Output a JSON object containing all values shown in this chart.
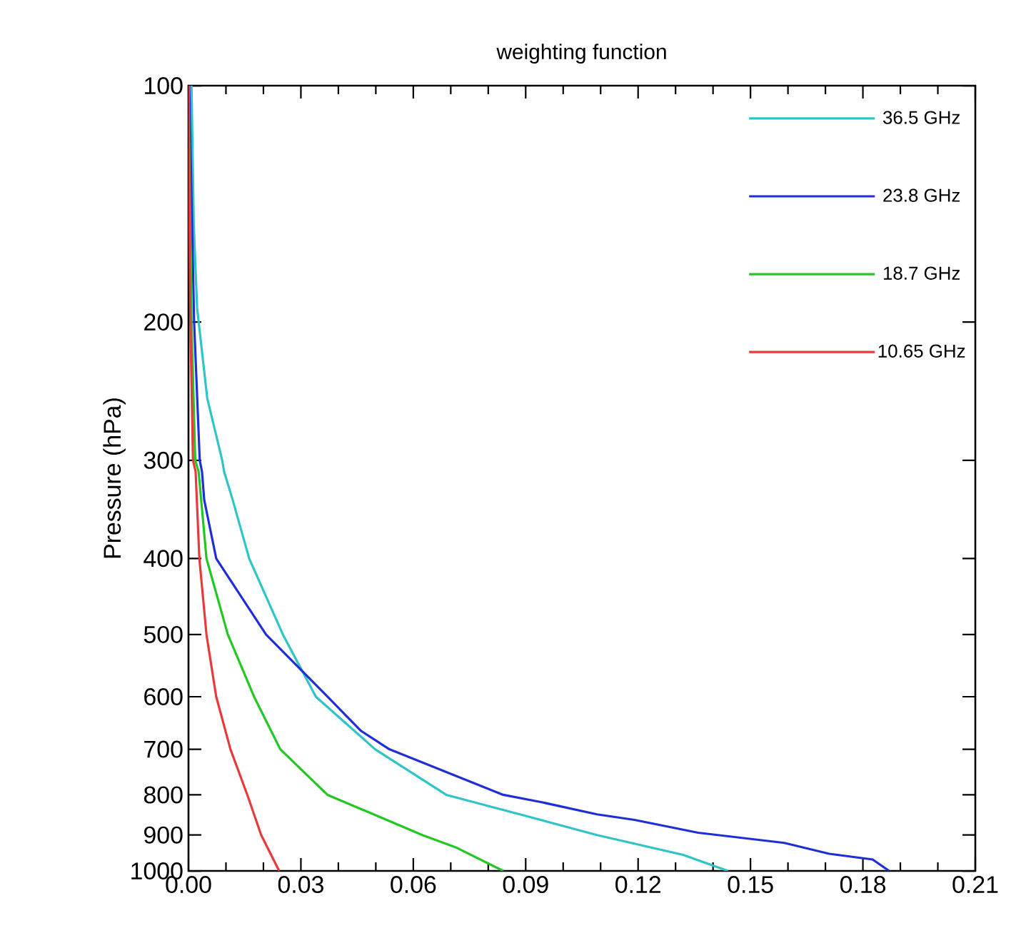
{
  "chart_data": {
    "type": "line",
    "title": "weighting function",
    "ylabel": "Pressure (hPa)",
    "xlim": [
      0,
      0.21
    ],
    "xticks": [
      {
        "value": 0,
        "label": "0.00"
      },
      {
        "value": 0.03,
        "label": "0.03"
      },
      {
        "value": 0.06,
        "label": "0.06"
      },
      {
        "value": 0.09,
        "label": "0.09"
      },
      {
        "value": 0.12,
        "label": "0.12"
      },
      {
        "value": 0.15,
        "label": "0.15"
      },
      {
        "value": 0.18,
        "label": "0.18"
      },
      {
        "value": 0.21,
        "label": "0.21"
      }
    ],
    "ylim": [
      1000,
      100
    ],
    "yticks": [
      100,
      200,
      300,
      400,
      500,
      600,
      700,
      800,
      900,
      1000
    ],
    "log": "y",
    "legend": "top right",
    "line_style": "solid",
    "marker": "none",
    "series": [
      {
        "name": "36.5 GHz",
        "color": "#2ec4c8",
        "x": [
          0.0008,
          0.0014,
          0.0023,
          0.005,
          0.009,
          0.0095,
          0.0118,
          0.0162,
          0.0252,
          0.034,
          0.0498,
          0.0688,
          0.094,
          0.109,
          0.132,
          0.144
        ],
        "values": [
          100,
          150,
          192,
          250,
          300,
          310,
          337,
          400,
          500,
          600,
          700,
          800,
          861,
          900,
          954,
          1000
        ]
      },
      {
        "name": "23.8 GHz",
        "color": "#1f2fd8",
        "x": [
          0.0002,
          0.0015,
          0.003,
          0.0036,
          0.0042,
          0.0074,
          0.0207,
          0.0371,
          0.046,
          0.0536,
          0.084,
          0.094,
          0.109,
          0.119,
          0.136,
          0.159,
          0.171,
          0.1826,
          0.187
        ],
        "values": [
          100,
          200,
          300,
          310,
          337,
          400,
          500,
          600,
          663,
          700,
          800,
          817,
          847,
          861,
          894,
          921,
          951,
          967,
          1000
        ]
      },
      {
        "name": "18.7 GHz",
        "color": "#22c822",
        "x": [
          0,
          0.0008,
          0.0018,
          0.0027,
          0.0048,
          0.0105,
          0.0175,
          0.0245,
          0.0371,
          0.0624,
          0.0713,
          0.084
        ],
        "values": [
          100,
          200,
          300,
          310,
          400,
          500,
          600,
          700,
          800,
          900,
          933,
          1000
        ]
      },
      {
        "name": "10.65 GHz",
        "color": "#e83a3a",
        "x": [
          0,
          0.0005,
          0.0012,
          0.0019,
          0.0029,
          0.0048,
          0.0074,
          0.0112,
          0.0157,
          0.0194,
          0.0242
        ],
        "values": [
          100,
          200,
          300,
          310,
          400,
          500,
          600,
          700,
          800,
          900,
          1000
        ]
      }
    ]
  }
}
